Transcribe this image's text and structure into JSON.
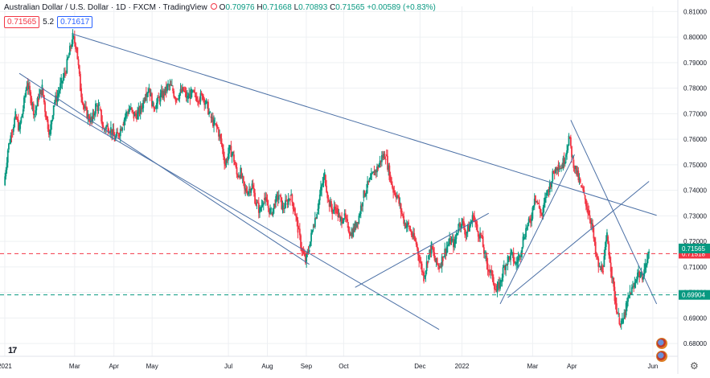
{
  "header": {
    "symbol": "Australian Dollar / U.S. Dollar · 1D · FXCM · TradingView",
    "ohlc": [
      {
        "k": "O",
        "v": "0.70976"
      },
      {
        "k": "H",
        "v": "0.71668"
      },
      {
        "k": "L",
        "v": "0.70893"
      },
      {
        "k": "C",
        "v": "0.71565"
      }
    ],
    "change": "+0.00589 (+0.83%)",
    "bid": "0.71565",
    "spread": "5.2",
    "ask": "0.71617"
  },
  "icons": {
    "logo": "tradingview-logo-icon",
    "settings": "gear-icon",
    "flags": "currency-flag-icon"
  },
  "colors": {
    "up": "#089981",
    "down": "#f23645",
    "trendline": "#4a6fa5",
    "red_level": "#f23645",
    "green_level": "#089981",
    "grid": "#eef0f3"
  },
  "chart_data": {
    "type": "candlestick",
    "ylim": [
      0.675,
      0.812
    ],
    "y_ticks": [
      "0.68000",
      "0.69000",
      "0.70000",
      "0.71000",
      "0.72000",
      "0.73000",
      "0.74000",
      "0.75000",
      "0.76000",
      "0.77000",
      "0.78000",
      "0.79000",
      "0.80000",
      "0.81000"
    ],
    "x_ticks": [
      {
        "label": "2021",
        "t": 0.02
      },
      {
        "label": "Mar",
        "t": 1.85
      },
      {
        "label": "Apr",
        "t": 2.88
      },
      {
        "label": "May",
        "t": 3.88
      },
      {
        "label": "Jul",
        "t": 5.88
      },
      {
        "label": "Aug",
        "t": 6.9
      },
      {
        "label": "Sep",
        "t": 7.92
      },
      {
        "label": "Oct",
        "t": 8.9
      },
      {
        "label": "Dec",
        "t": 10.9
      },
      {
        "label": "2022",
        "t": 12.0
      },
      {
        "label": "Mar",
        "t": 13.85
      },
      {
        "label": "Apr",
        "t": 14.88
      },
      {
        "label": "Jun",
        "t": 17.0
      }
    ],
    "t_range": [
      0,
      17.55
    ],
    "closes": [
      [
        0.0,
        0.742
      ],
      [
        0.1,
        0.756
      ],
      [
        0.2,
        0.763
      ],
      [
        0.3,
        0.769
      ],
      [
        0.4,
        0.764
      ],
      [
        0.5,
        0.772
      ],
      [
        0.6,
        0.782
      ],
      [
        0.7,
        0.776
      ],
      [
        0.8,
        0.77
      ],
      [
        0.9,
        0.776
      ],
      [
        1.0,
        0.78
      ],
      [
        1.1,
        0.769
      ],
      [
        1.2,
        0.762
      ],
      [
        1.3,
        0.774
      ],
      [
        1.4,
        0.777
      ],
      [
        1.5,
        0.782
      ],
      [
        1.6,
        0.786
      ],
      [
        1.7,
        0.793
      ],
      [
        1.8,
        0.8
      ],
      [
        1.9,
        0.796
      ],
      [
        2.0,
        0.78
      ],
      [
        2.1,
        0.772
      ],
      [
        2.2,
        0.769
      ],
      [
        2.3,
        0.767
      ],
      [
        2.4,
        0.773
      ],
      [
        2.5,
        0.772
      ],
      [
        2.6,
        0.764
      ],
      [
        2.7,
        0.765
      ],
      [
        2.8,
        0.764
      ],
      [
        2.9,
        0.76
      ],
      [
        3.0,
        0.762
      ],
      [
        3.1,
        0.766
      ],
      [
        3.2,
        0.77
      ],
      [
        3.3,
        0.772
      ],
      [
        3.4,
        0.769
      ],
      [
        3.5,
        0.77
      ],
      [
        3.6,
        0.772
      ],
      [
        3.7,
        0.778
      ],
      [
        3.8,
        0.78
      ],
      [
        3.9,
        0.773
      ],
      [
        4.0,
        0.774
      ],
      [
        4.1,
        0.777
      ],
      [
        4.2,
        0.778
      ],
      [
        4.3,
        0.781
      ],
      [
        4.4,
        0.78
      ],
      [
        4.5,
        0.776
      ],
      [
        4.6,
        0.778
      ],
      [
        4.7,
        0.779
      ],
      [
        4.8,
        0.776
      ],
      [
        4.9,
        0.778
      ],
      [
        5.0,
        0.777
      ],
      [
        5.1,
        0.776
      ],
      [
        5.2,
        0.777
      ],
      [
        5.3,
        0.774
      ],
      [
        5.4,
        0.769
      ],
      [
        5.5,
        0.766
      ],
      [
        5.6,
        0.764
      ],
      [
        5.7,
        0.758
      ],
      [
        5.8,
        0.75
      ],
      [
        5.9,
        0.756
      ],
      [
        6.0,
        0.754
      ],
      [
        6.1,
        0.746
      ],
      [
        6.2,
        0.747
      ],
      [
        6.3,
        0.74
      ],
      [
        6.4,
        0.74
      ],
      [
        6.5,
        0.742
      ],
      [
        6.6,
        0.735
      ],
      [
        6.7,
        0.732
      ],
      [
        6.8,
        0.737
      ],
      [
        6.9,
        0.734
      ],
      [
        7.0,
        0.731
      ],
      [
        7.1,
        0.735
      ],
      [
        7.2,
        0.738
      ],
      [
        7.3,
        0.733
      ],
      [
        7.4,
        0.735
      ],
      [
        7.5,
        0.738
      ],
      [
        7.6,
        0.733
      ],
      [
        7.7,
        0.725
      ],
      [
        7.8,
        0.717
      ],
      [
        7.9,
        0.712
      ],
      [
        8.0,
        0.718
      ],
      [
        8.1,
        0.726
      ],
      [
        8.2,
        0.732
      ],
      [
        8.3,
        0.74
      ],
      [
        8.4,
        0.746
      ],
      [
        8.5,
        0.736
      ],
      [
        8.6,
        0.732
      ],
      [
        8.7,
        0.733
      ],
      [
        8.8,
        0.728
      ],
      [
        8.9,
        0.73
      ],
      [
        9.0,
        0.726
      ],
      [
        9.1,
        0.723
      ],
      [
        9.2,
        0.726
      ],
      [
        9.3,
        0.73
      ],
      [
        9.4,
        0.737
      ],
      [
        9.5,
        0.741
      ],
      [
        9.6,
        0.744
      ],
      [
        9.7,
        0.747
      ],
      [
        9.8,
        0.749
      ],
      [
        9.9,
        0.753
      ],
      [
        10.0,
        0.754
      ],
      [
        10.1,
        0.746
      ],
      [
        10.2,
        0.74
      ],
      [
        10.3,
        0.738
      ],
      [
        10.4,
        0.732
      ],
      [
        10.5,
        0.727
      ],
      [
        10.6,
        0.726
      ],
      [
        10.7,
        0.722
      ],
      [
        10.8,
        0.719
      ],
      [
        10.9,
        0.712
      ],
      [
        11.0,
        0.706
      ],
      [
        11.1,
        0.713
      ],
      [
        11.2,
        0.718
      ],
      [
        11.3,
        0.712
      ],
      [
        11.4,
        0.71
      ],
      [
        11.5,
        0.714
      ],
      [
        11.6,
        0.718
      ],
      [
        11.7,
        0.72
      ],
      [
        11.8,
        0.719
      ],
      [
        11.9,
        0.726
      ],
      [
        12.0,
        0.728
      ],
      [
        12.1,
        0.723
      ],
      [
        12.2,
        0.726
      ],
      [
        12.3,
        0.73
      ],
      [
        12.4,
        0.724
      ],
      [
        12.5,
        0.722
      ],
      [
        12.6,
        0.714
      ],
      [
        12.7,
        0.709
      ],
      [
        12.8,
        0.706
      ],
      [
        12.9,
        0.7
      ],
      [
        13.0,
        0.704
      ],
      [
        13.1,
        0.71
      ],
      [
        13.2,
        0.713
      ],
      [
        13.3,
        0.715
      ],
      [
        13.4,
        0.711
      ],
      [
        13.5,
        0.714
      ],
      [
        13.6,
        0.721
      ],
      [
        13.7,
        0.726
      ],
      [
        13.8,
        0.728
      ],
      [
        13.9,
        0.738
      ],
      [
        14.0,
        0.734
      ],
      [
        14.1,
        0.73
      ],
      [
        14.2,
        0.738
      ],
      [
        14.3,
        0.742
      ],
      [
        14.4,
        0.747
      ],
      [
        14.5,
        0.75
      ],
      [
        14.6,
        0.749
      ],
      [
        14.7,
        0.753
      ],
      [
        14.8,
        0.761
      ],
      [
        14.9,
        0.752
      ],
      [
        15.0,
        0.747
      ],
      [
        15.1,
        0.742
      ],
      [
        15.2,
        0.738
      ],
      [
        15.3,
        0.732
      ],
      [
        15.4,
        0.727
      ],
      [
        15.5,
        0.715
      ],
      [
        15.6,
        0.709
      ],
      [
        15.7,
        0.71
      ],
      [
        15.8,
        0.722
      ],
      [
        15.9,
        0.71
      ],
      [
        16.0,
        0.698
      ],
      [
        16.1,
        0.69
      ],
      [
        16.2,
        0.688
      ],
      [
        16.3,
        0.694
      ],
      [
        16.4,
        0.7
      ],
      [
        16.5,
        0.702
      ],
      [
        16.6,
        0.708
      ],
      [
        16.7,
        0.706
      ],
      [
        16.8,
        0.71
      ],
      [
        16.9,
        0.7157
      ]
    ],
    "trendlines": [
      {
        "t1": 1.8,
        "p1": 0.8012,
        "t2": 17.1,
        "p2": 0.7302
      },
      {
        "t1": 0.4,
        "p1": 0.7858,
        "t2": 8.0,
        "p2": 0.711
      },
      {
        "t1": 0.9,
        "p1": 0.7775,
        "t2": 11.4,
        "p2": 0.6855
      },
      {
        "t1": 9.2,
        "p1": 0.702,
        "t2": 12.7,
        "p2": 0.731
      },
      {
        "t1": 13.0,
        "p1": 0.6955,
        "t2": 14.95,
        "p2": 0.754
      },
      {
        "t1": 14.85,
        "p1": 0.7675,
        "t2": 17.1,
        "p2": 0.6955
      },
      {
        "t1": 13.2,
        "p1": 0.698,
        "t2": 16.9,
        "p2": 0.7435
      }
    ],
    "levels": [
      {
        "price": 0.71518,
        "label": "0.71518",
        "color": "#f23645"
      },
      {
        "price": 0.69904,
        "label": "0.69904",
        "color": "#089981"
      }
    ],
    "last_price": {
      "price": 0.71565,
      "label": "0.71565"
    }
  }
}
